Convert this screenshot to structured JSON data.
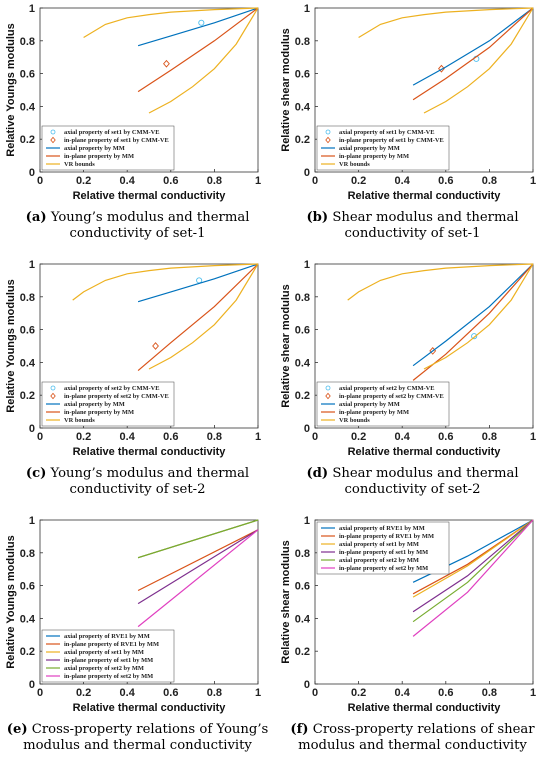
{
  "colors": {
    "blue": "#0072BD",
    "orange": "#D95319",
    "yellow": "#EDB120",
    "purple": "#7E2F8E",
    "green": "#77AC30",
    "cyan": "#4DBEEE",
    "magenta": "#E040C0"
  },
  "panels": [
    {
      "caption_label": "(a)",
      "caption_text": "Young’s modulus and thermal conductivity of set-1",
      "chart_data": {
        "type": "line",
        "xlabel": "Relative thermal conductivity",
        "ylabel": "Relative Youngs modulus",
        "xlim": [
          0,
          1
        ],
        "ylim": [
          0,
          1
        ],
        "xticks": [
          "0",
          "0.2",
          "0.4",
          "0.6",
          "0.8",
          "1"
        ],
        "yticks": [
          "0",
          "0.2",
          "0.4",
          "0.6",
          "0.8",
          "1"
        ],
        "legend_position": "bottom-left",
        "series": [
          {
            "name": "axial property of set1 by CMM-VE",
            "kind": "marker",
            "marker": "circle",
            "color": "#4DBEEE",
            "x": [
              0.74
            ],
            "y": [
              0.91
            ]
          },
          {
            "name": "in-plane property of set1 by CMM-VE",
            "kind": "marker",
            "marker": "diamond",
            "color": "#D95319",
            "x": [
              0.58
            ],
            "y": [
              0.66
            ]
          },
          {
            "name": "axial property by MM",
            "kind": "line",
            "color": "#0072BD",
            "x": [
              0.45,
              0.6,
              0.8,
              1.0
            ],
            "y": [
              0.77,
              0.83,
              0.91,
              1.0
            ]
          },
          {
            "name": "in-plane property by MM",
            "kind": "line",
            "color": "#D95319",
            "x": [
              0.45,
              0.6,
              0.8,
              1.0
            ],
            "y": [
              0.49,
              0.62,
              0.8,
              1.0
            ]
          },
          {
            "name": "VR bounds",
            "kind": "line",
            "color": "#EDB120",
            "x": [
              0.2,
              0.3,
              0.4,
              0.5,
              0.6,
              0.8,
              1.0
            ],
            "y": [
              0.82,
              0.9,
              0.94,
              0.96,
              0.975,
              0.99,
              1.0
            ]
          },
          {
            "name": "",
            "kind": "line",
            "color": "#EDB120",
            "x": [
              0.5,
              0.6,
              0.7,
              0.8,
              0.9,
              1.0
            ],
            "y": [
              0.36,
              0.43,
              0.52,
              0.63,
              0.78,
              1.0
            ]
          }
        ]
      }
    },
    {
      "caption_label": "(b)",
      "caption_text": "Shear modulus and thermal conductivity of set-1",
      "chart_data": {
        "type": "line",
        "xlabel": "Relative thermal conductivity",
        "ylabel": "Relative shear modulus",
        "xlim": [
          0,
          1
        ],
        "ylim": [
          0,
          1
        ],
        "xticks": [
          "0",
          "0.2",
          "0.4",
          "0.6",
          "0.8",
          "1"
        ],
        "yticks": [
          "0",
          "0.2",
          "0.4",
          "0.6",
          "0.8",
          "1"
        ],
        "legend_position": "bottom-left",
        "series": [
          {
            "name": "axial property of set1 by CMM-VE",
            "kind": "marker",
            "marker": "circle",
            "color": "#4DBEEE",
            "x": [
              0.74
            ],
            "y": [
              0.69
            ]
          },
          {
            "name": "in-plane property of set1 by CMM-VE",
            "kind": "marker",
            "marker": "diamond",
            "color": "#D95319",
            "x": [
              0.58
            ],
            "y": [
              0.63
            ]
          },
          {
            "name": "axial property by MM",
            "kind": "line",
            "color": "#0072BD",
            "x": [
              0.45,
              0.6,
              0.8,
              1.0
            ],
            "y": [
              0.53,
              0.64,
              0.8,
              1.0
            ]
          },
          {
            "name": "in-plane property by MM",
            "kind": "line",
            "color": "#D95319",
            "x": [
              0.45,
              0.6,
              0.8,
              1.0
            ],
            "y": [
              0.44,
              0.57,
              0.76,
              1.0
            ]
          },
          {
            "name": "VR bounds",
            "kind": "line",
            "color": "#EDB120",
            "x": [
              0.2,
              0.3,
              0.4,
              0.5,
              0.6,
              0.8,
              1.0
            ],
            "y": [
              0.82,
              0.9,
              0.94,
              0.96,
              0.975,
              0.99,
              1.0
            ]
          },
          {
            "name": "",
            "kind": "line",
            "color": "#EDB120",
            "x": [
              0.5,
              0.6,
              0.7,
              0.8,
              0.9,
              1.0
            ],
            "y": [
              0.36,
              0.43,
              0.52,
              0.63,
              0.78,
              1.0
            ]
          }
        ]
      }
    },
    {
      "caption_label": "(c)",
      "caption_text": "Young’s modulus and thermal conductivity of set-2",
      "chart_data": {
        "type": "line",
        "xlabel": "Relative thermal conductivity",
        "ylabel": "Relative Youngs modulus",
        "xlim": [
          0,
          1
        ],
        "ylim": [
          0,
          1
        ],
        "xticks": [
          "0",
          "0.2",
          "0.4",
          "0.6",
          "0.8",
          "1"
        ],
        "yticks": [
          "0",
          "0.2",
          "0.4",
          "0.6",
          "0.8",
          "1"
        ],
        "legend_position": "bottom-left",
        "series": [
          {
            "name": "axial property of set2 by CMM-VE",
            "kind": "marker",
            "marker": "circle",
            "color": "#4DBEEE",
            "x": [
              0.73
            ],
            "y": [
              0.9
            ]
          },
          {
            "name": "in-plane property of set2 by CMM-VE",
            "kind": "marker",
            "marker": "diamond",
            "color": "#D95319",
            "x": [
              0.53
            ],
            "y": [
              0.5
            ]
          },
          {
            "name": "axial property by MM",
            "kind": "line",
            "color": "#0072BD",
            "x": [
              0.45,
              0.6,
              0.8,
              1.0
            ],
            "y": [
              0.77,
              0.83,
              0.91,
              1.0
            ]
          },
          {
            "name": "in-plane property by MM",
            "kind": "line",
            "color": "#D95319",
            "x": [
              0.45,
              0.6,
              0.8,
              1.0
            ],
            "y": [
              0.35,
              0.52,
              0.74,
              1.0
            ]
          },
          {
            "name": "VR bounds",
            "kind": "line",
            "color": "#EDB120",
            "x": [
              0.15,
              0.2,
              0.3,
              0.4,
              0.5,
              0.6,
              0.8,
              1.0
            ],
            "y": [
              0.78,
              0.83,
              0.9,
              0.94,
              0.96,
              0.975,
              0.99,
              1.0
            ]
          },
          {
            "name": "",
            "kind": "line",
            "color": "#EDB120",
            "x": [
              0.5,
              0.6,
              0.7,
              0.8,
              0.9,
              1.0
            ],
            "y": [
              0.36,
              0.43,
              0.52,
              0.63,
              0.78,
              1.0
            ]
          }
        ]
      }
    },
    {
      "caption_label": "(d)",
      "caption_text": "Shear modulus and thermal conductivity of set-2",
      "chart_data": {
        "type": "line",
        "xlabel": "Relative thermal conductivity",
        "ylabel": "Relative shear modulus",
        "xlim": [
          0,
          1
        ],
        "ylim": [
          0,
          1
        ],
        "xticks": [
          "0",
          "0.2",
          "0.4",
          "0.6",
          "0.8",
          "1"
        ],
        "yticks": [
          "0",
          "0.2",
          "0.4",
          "0.6",
          "0.8",
          "1"
        ],
        "legend_position": "bottom-left",
        "series": [
          {
            "name": "axial property of set2 by CMM-VE",
            "kind": "marker",
            "marker": "circle",
            "color": "#4DBEEE",
            "x": [
              0.73
            ],
            "y": [
              0.56
            ]
          },
          {
            "name": "in-plane property of set2 by CMM-VE",
            "kind": "marker",
            "marker": "diamond",
            "color": "#D95319",
            "x": [
              0.54
            ],
            "y": [
              0.47
            ]
          },
          {
            "name": "axial property by MM",
            "kind": "line",
            "color": "#0072BD",
            "x": [
              0.45,
              0.6,
              0.8,
              1.0
            ],
            "y": [
              0.38,
              0.53,
              0.74,
              1.0
            ]
          },
          {
            "name": "in-plane property by MM",
            "kind": "line",
            "color": "#D95319",
            "x": [
              0.45,
              0.6,
              0.8,
              1.0
            ],
            "y": [
              0.29,
              0.45,
              0.7,
              1.0
            ]
          },
          {
            "name": "VR bounds",
            "kind": "line",
            "color": "#EDB120",
            "x": [
              0.15,
              0.2,
              0.3,
              0.4,
              0.5,
              0.6,
              0.8,
              1.0
            ],
            "y": [
              0.78,
              0.83,
              0.9,
              0.94,
              0.96,
              0.975,
              0.99,
              1.0
            ]
          },
          {
            "name": "",
            "kind": "line",
            "color": "#EDB120",
            "x": [
              0.5,
              0.6,
              0.7,
              0.8,
              0.9,
              1.0
            ],
            "y": [
              0.36,
              0.43,
              0.52,
              0.63,
              0.78,
              1.0
            ]
          }
        ]
      }
    },
    {
      "caption_label": "(e)",
      "caption_text": "Cross-property relations of Young’s modulus and thermal conductivity",
      "chart_data": {
        "type": "line",
        "xlabel": "Relative thermal conductivity",
        "ylabel": "Relative Youngs modulus",
        "xlim": [
          0,
          1
        ],
        "ylim": [
          0,
          1
        ],
        "xticks": [
          "0",
          "0.2",
          "0.4",
          "0.6",
          "0.8",
          "1"
        ],
        "yticks": [
          "0",
          "0.2",
          "0.4",
          "0.6",
          "0.8",
          "1"
        ],
        "legend_position": "bottom-left",
        "series": [
          {
            "name": "axial property of RVE1 by MM",
            "kind": "line",
            "color": "#0072BD",
            "x": [
              0.45,
              1.0
            ],
            "y": [
              0.77,
              1.0
            ]
          },
          {
            "name": "in-plane property of RVE1 by MM",
            "kind": "line",
            "color": "#D95319",
            "x": [
              0.45,
              1.0
            ],
            "y": [
              0.57,
              0.94
            ]
          },
          {
            "name": "axial property of set1 by MM",
            "kind": "line",
            "color": "#EDB120",
            "x": [
              0.45,
              1.0
            ],
            "y": [
              0.77,
              1.0
            ]
          },
          {
            "name": "in-plane property of set1 by MM",
            "kind": "line",
            "color": "#7E2F8E",
            "x": [
              0.45,
              1.0
            ],
            "y": [
              0.49,
              0.94
            ]
          },
          {
            "name": "axial property of set2 by MM",
            "kind": "line",
            "color": "#77AC30",
            "x": [
              0.45,
              1.0
            ],
            "y": [
              0.77,
              1.0
            ]
          },
          {
            "name": "in-plane property of set2 by MM",
            "kind": "line",
            "color": "#E040C0",
            "x": [
              0.45,
              1.0
            ],
            "y": [
              0.35,
              0.94
            ]
          }
        ]
      }
    },
    {
      "caption_label": "(f)",
      "caption_text": "Cross-property relations of shear modulus and thermal conductivity",
      "chart_data": {
        "type": "line",
        "xlabel": "Relative thermal conductivity",
        "ylabel": "Relative shear modulus",
        "xlim": [
          0,
          1
        ],
        "ylim": [
          0,
          1
        ],
        "xticks": [
          "0",
          "0.2",
          "0.4",
          "0.6",
          "0.8",
          "1"
        ],
        "yticks": [
          "0",
          "0.2",
          "0.4",
          "0.6",
          "0.8",
          "1"
        ],
        "legend_position": "top-left",
        "series": [
          {
            "name": "axial property of RVE1 by MM",
            "kind": "line",
            "color": "#0072BD",
            "x": [
              0.45,
              0.7,
              1.0
            ],
            "y": [
              0.62,
              0.78,
              1.0
            ]
          },
          {
            "name": "in-plane property of RVE1 by MM",
            "kind": "line",
            "color": "#D95319",
            "x": [
              0.45,
              0.7,
              1.0
            ],
            "y": [
              0.55,
              0.73,
              1.0
            ]
          },
          {
            "name": "axial property of set1 by MM",
            "kind": "line",
            "color": "#EDB120",
            "x": [
              0.45,
              0.7,
              1.0
            ],
            "y": [
              0.53,
              0.72,
              1.0
            ]
          },
          {
            "name": "in-plane property of set1 by MM",
            "kind": "line",
            "color": "#7E2F8E",
            "x": [
              0.45,
              0.7,
              1.0
            ],
            "y": [
              0.44,
              0.66,
              1.0
            ]
          },
          {
            "name": "axial property of set2 by MM",
            "kind": "line",
            "color": "#77AC30",
            "x": [
              0.45,
              0.7,
              1.0
            ],
            "y": [
              0.38,
              0.62,
              1.0
            ]
          },
          {
            "name": "in-plane property of set2 by MM",
            "kind": "line",
            "color": "#E040C0",
            "x": [
              0.45,
              0.7,
              1.0
            ],
            "y": [
              0.29,
              0.56,
              1.0
            ]
          }
        ]
      }
    }
  ]
}
